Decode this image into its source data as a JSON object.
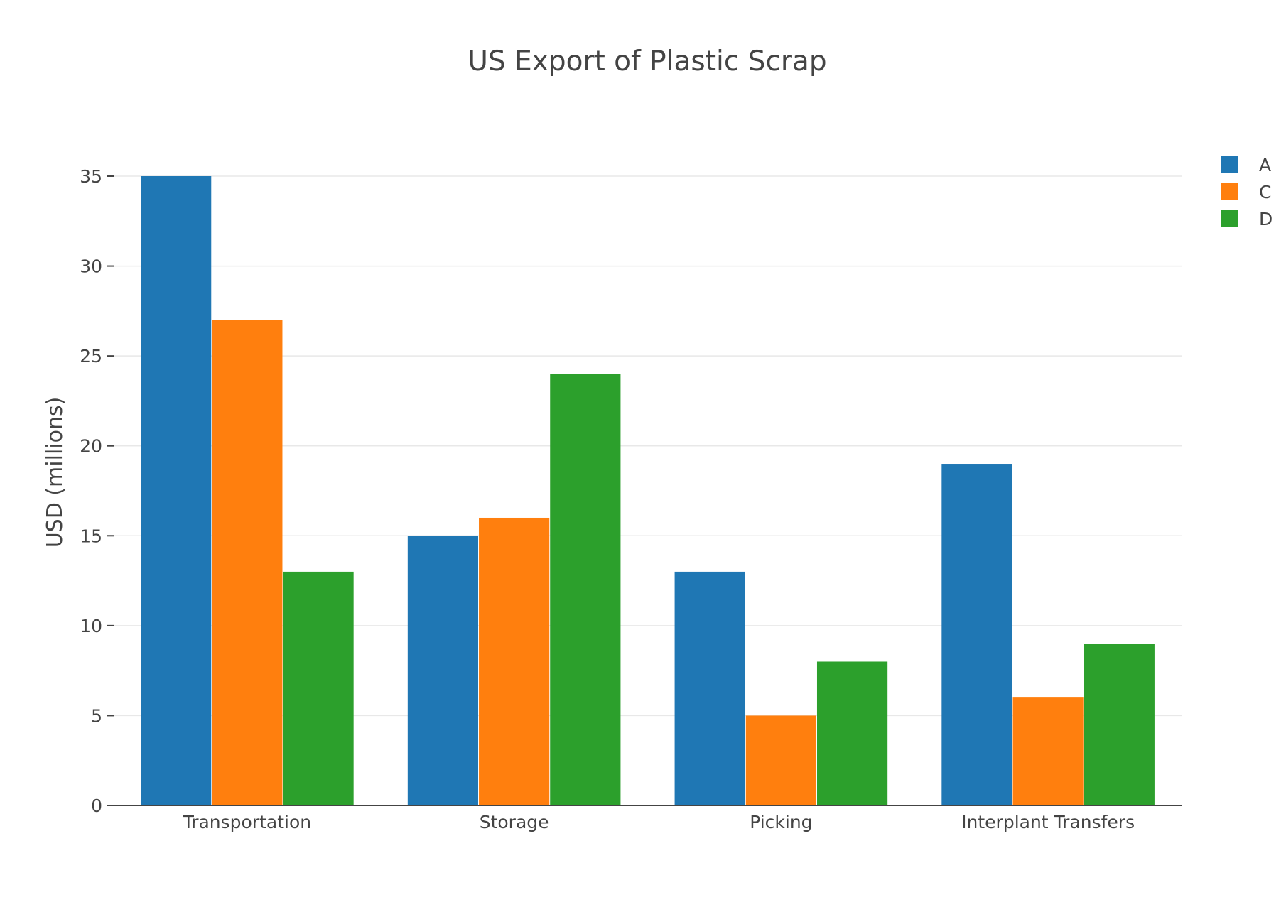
{
  "chart_data": {
    "type": "bar",
    "title": "US Export of Plastic Scrap",
    "xlabel": "",
    "ylabel": "USD (millions)",
    "categories": [
      "Transportation",
      "Storage",
      "Picking",
      "Interplant Transfers"
    ],
    "series": [
      {
        "name": "A",
        "color": "#1f77b4",
        "values": [
          35,
          15,
          13,
          19
        ]
      },
      {
        "name": "C",
        "color": "#ff7f0e",
        "values": [
          27,
          16,
          5,
          6
        ]
      },
      {
        "name": "D",
        "color": "#2ca02c",
        "values": [
          13,
          24,
          8,
          9
        ]
      }
    ],
    "ylim": [
      0,
      35
    ],
    "yticks": [
      0,
      5,
      10,
      15,
      20,
      25,
      30,
      35
    ],
    "grid": true,
    "legend_position": "top-right"
  }
}
